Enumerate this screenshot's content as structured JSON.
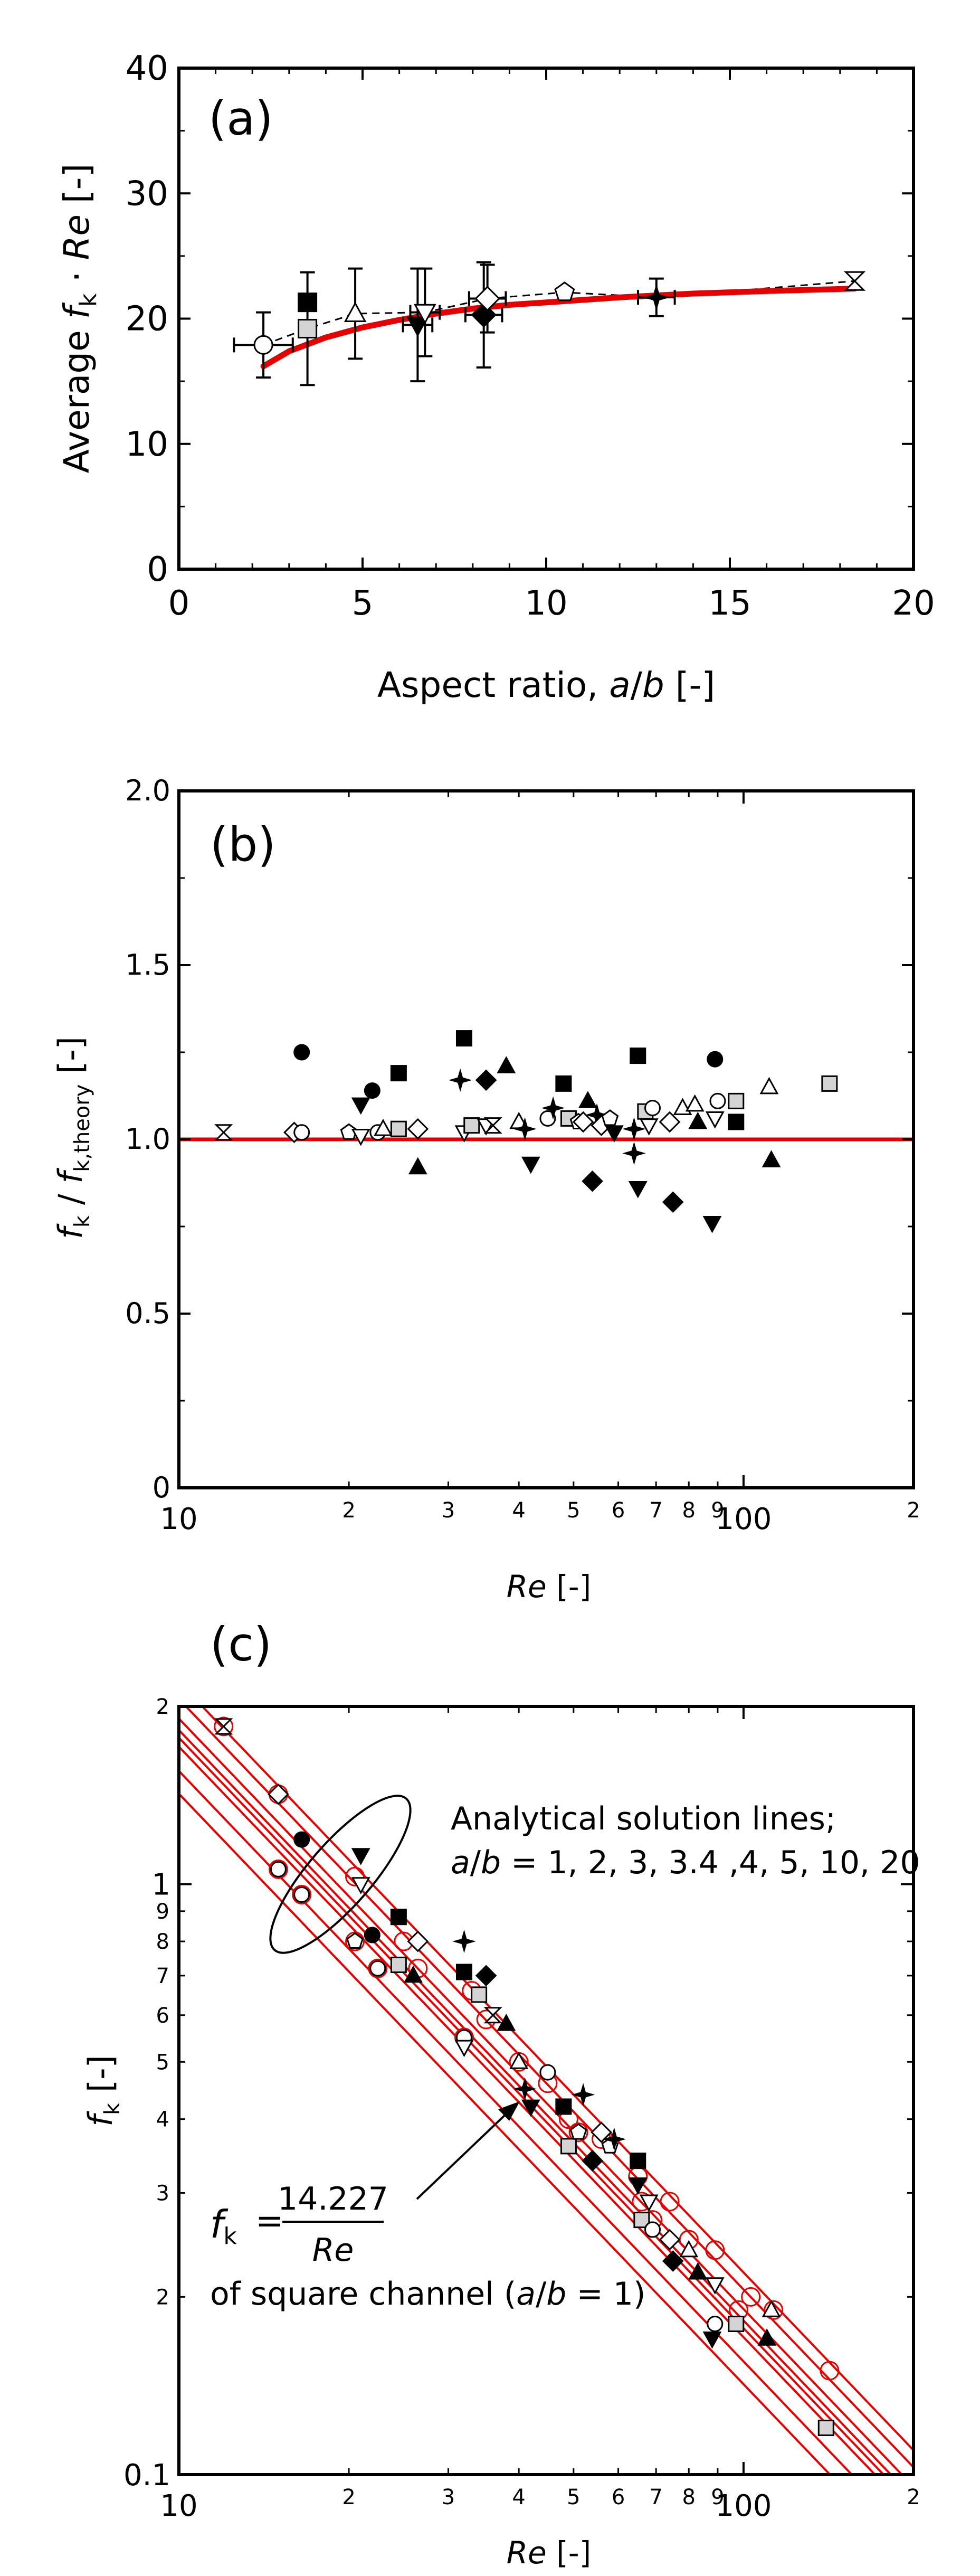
{
  "chart_data": [
    {
      "type": "scatter",
      "panel": "(a)",
      "title": "",
      "xlabel": "Aspect ratio, a/b [-]",
      "ylabel": "Average fk · Re [-]",
      "xlim": [
        0,
        20
      ],
      "ylim": [
        0,
        40
      ],
      "xticks": [
        0,
        5,
        10,
        15,
        20
      ],
      "yticks": [
        0,
        10,
        20,
        30,
        40
      ],
      "series": [
        {
          "name": "circle",
          "marker": "circle",
          "fill": "white",
          "points": [
            {
              "x": 2.3,
              "y": 17.9,
              "xerr": 0.8,
              "yerr": 2.6
            }
          ]
        },
        {
          "name": "filled-square",
          "marker": "square",
          "fill": "black",
          "points": [
            {
              "x": 3.5,
              "y": 21.3
            }
          ]
        },
        {
          "name": "grey-square",
          "marker": "square",
          "fill": "grey",
          "points": [
            {
              "x": 3.5,
              "y": 19.2,
              "yerr": 4.5
            }
          ]
        },
        {
          "name": "triangle-up",
          "marker": "triangle-up",
          "fill": "white",
          "points": [
            {
              "x": 4.8,
              "y": 20.4,
              "yerr": 3.6
            }
          ]
        },
        {
          "name": "filled-triangle-down",
          "marker": "triangle-down",
          "fill": "black",
          "points": [
            {
              "x": 6.5,
              "y": 19.5,
              "xerr": 0.4,
              "yerr": 4.5
            }
          ]
        },
        {
          "name": "triangle-down",
          "marker": "triangle-down",
          "fill": "white",
          "points": [
            {
              "x": 6.7,
              "y": 20.5,
              "xerr": 0.4,
              "yerr": 3.5
            }
          ]
        },
        {
          "name": "filled-diamond",
          "marker": "diamond",
          "fill": "black",
          "points": [
            {
              "x": 8.3,
              "y": 20.3,
              "xerr": 0.5,
              "yerr": 4.2
            }
          ]
        },
        {
          "name": "diamond",
          "marker": "diamond",
          "fill": "white",
          "points": [
            {
              "x": 8.4,
              "y": 21.6,
              "xerr": 0.5,
              "yerr": 2.7
            }
          ]
        },
        {
          "name": "pentagon",
          "marker": "pentagon",
          "fill": "white",
          "points": [
            {
              "x": 10.5,
              "y": 22.1
            }
          ]
        },
        {
          "name": "star",
          "marker": "star",
          "fill": "black",
          "points": [
            {
              "x": 13.0,
              "y": 21.7,
              "xerr": 0.5,
              "yerr": 1.5
            }
          ]
        },
        {
          "name": "hourglass",
          "marker": "hourglass",
          "fill": "white",
          "points": [
            {
              "x": 18.4,
              "y": 23.0
            }
          ]
        }
      ],
      "theory_curve": [
        [
          2.3,
          16.2
        ],
        [
          3,
          17.4
        ],
        [
          4,
          18.5
        ],
        [
          5,
          19.3
        ],
        [
          6,
          19.9
        ],
        [
          7,
          20.4
        ],
        [
          8,
          20.8
        ],
        [
          9,
          21.1
        ],
        [
          10,
          21.3
        ],
        [
          12,
          21.7
        ],
        [
          14,
          22.0
        ],
        [
          16,
          22.2
        ],
        [
          18.4,
          22.4
        ]
      ],
      "dashed_trend": [
        [
          2.3,
          17.9
        ],
        [
          3.5,
          19.2
        ],
        [
          4.8,
          20.4
        ],
        [
          6.7,
          20.5
        ],
        [
          8.4,
          21.6
        ],
        [
          10.5,
          22.1
        ],
        [
          13.0,
          21.7
        ],
        [
          18.4,
          23.0
        ]
      ]
    },
    {
      "type": "scatter",
      "panel": "(b)",
      "title": "",
      "xlabel": "Re [-]",
      "ylabel": "fk / fk,theory [-]",
      "xscale": "log",
      "xlim": [
        10,
        200
      ],
      "ylim": [
        0,
        2.0
      ],
      "yticks": [
        "0",
        "0.5",
        "1.0",
        "1.5",
        "2.0"
      ],
      "x_major_ticks": [
        "10",
        "100"
      ],
      "x_minor_labels": [
        "2",
        "3",
        "4",
        "5",
        "6",
        "7",
        "8",
        "9",
        "2"
      ],
      "reference_line": 1.0,
      "points": [
        {
          "x": 12,
          "y": 1.02,
          "m": "hourglass",
          "f": "white"
        },
        {
          "x": 16,
          "y": 1.02,
          "m": "diamond",
          "f": "white"
        },
        {
          "x": 16.5,
          "y": 1.02,
          "m": "circle",
          "f": "white"
        },
        {
          "x": 16.5,
          "y": 1.25,
          "m": "circle",
          "f": "black"
        },
        {
          "x": 20,
          "y": 1.02,
          "m": "pentagon",
          "f": "white"
        },
        {
          "x": 21,
          "y": 1.1,
          "m": "triangle-down",
          "f": "black"
        },
        {
          "x": 21,
          "y": 1.01,
          "m": "triangle-down",
          "f": "white"
        },
        {
          "x": 22,
          "y": 1.14,
          "m": "circle",
          "f": "black"
        },
        {
          "x": 22.5,
          "y": 1.02,
          "m": "circle",
          "f": "white"
        },
        {
          "x": 23,
          "y": 1.03,
          "m": "triangle-up",
          "f": "white"
        },
        {
          "x": 24.5,
          "y": 1.19,
          "m": "square",
          "f": "black"
        },
        {
          "x": 24.5,
          "y": 1.03,
          "m": "square",
          "f": "grey"
        },
        {
          "x": 26.5,
          "y": 1.03,
          "m": "diamond",
          "f": "white"
        },
        {
          "x": 26.5,
          "y": 0.92,
          "m": "triangle-up",
          "f": "black"
        },
        {
          "x": 32,
          "y": 1.29,
          "m": "square",
          "f": "black"
        },
        {
          "x": 32,
          "y": 1.02,
          "m": "triangle-down",
          "f": "white"
        },
        {
          "x": 31.5,
          "y": 1.17,
          "m": "star",
          "f": "black"
        },
        {
          "x": 33,
          "y": 1.04,
          "m": "square",
          "f": "grey"
        },
        {
          "x": 35,
          "y": 1.17,
          "m": "diamond",
          "f": "black"
        },
        {
          "x": 35,
          "y": 1.04,
          "m": "triangle-down",
          "f": "white"
        },
        {
          "x": 36,
          "y": 1.04,
          "m": "hourglass",
          "f": "white"
        },
        {
          "x": 38,
          "y": 1.21,
          "m": "triangle-up",
          "f": "black"
        },
        {
          "x": 40,
          "y": 1.05,
          "m": "triangle-up",
          "f": "white"
        },
        {
          "x": 41,
          "y": 1.03,
          "m": "star",
          "f": "black"
        },
        {
          "x": 42,
          "y": 0.93,
          "m": "triangle-down",
          "f": "black"
        },
        {
          "x": 45,
          "y": 1.06,
          "m": "circle",
          "f": "white"
        },
        {
          "x": 46,
          "y": 1.09,
          "m": "star",
          "f": "black"
        },
        {
          "x": 48,
          "y": 1.16,
          "m": "square",
          "f": "black"
        },
        {
          "x": 49,
          "y": 1.06,
          "m": "square",
          "f": "grey"
        },
        {
          "x": 51,
          "y": 1.05,
          "m": "pentagon",
          "f": "white"
        },
        {
          "x": 52,
          "y": 1.05,
          "m": "diamond",
          "f": "white"
        },
        {
          "x": 53,
          "y": 1.11,
          "m": "triangle-up",
          "f": "black"
        },
        {
          "x": 54,
          "y": 0.88,
          "m": "diamond",
          "f": "black"
        },
        {
          "x": 55,
          "y": 1.07,
          "m": "star",
          "f": "black"
        },
        {
          "x": 56,
          "y": 1.04,
          "m": "diamond",
          "f": "white"
        },
        {
          "x": 58,
          "y": 1.06,
          "m": "pentagon",
          "f": "white"
        },
        {
          "x": 59,
          "y": 1.02,
          "m": "triangle-down",
          "f": "black"
        },
        {
          "x": 65,
          "y": 1.24,
          "m": "square",
          "f": "black"
        },
        {
          "x": 64,
          "y": 1.03,
          "m": "star",
          "f": "black"
        },
        {
          "x": 64,
          "y": 0.96,
          "m": "star",
          "f": "black"
        },
        {
          "x": 65,
          "y": 0.86,
          "m": "triangle-down",
          "f": "black"
        },
        {
          "x": 67,
          "y": 1.08,
          "m": "square",
          "f": "grey"
        },
        {
          "x": 68,
          "y": 1.04,
          "m": "triangle-down",
          "f": "white"
        },
        {
          "x": 69,
          "y": 1.09,
          "m": "circle",
          "f": "white"
        },
        {
          "x": 74,
          "y": 1.05,
          "m": "diamond",
          "f": "white"
        },
        {
          "x": 75,
          "y": 0.82,
          "m": "diamond",
          "f": "black"
        },
        {
          "x": 78,
          "y": 1.09,
          "m": "triangle-up",
          "f": "white"
        },
        {
          "x": 82,
          "y": 1.1,
          "m": "triangle-up",
          "f": "white"
        },
        {
          "x": 83,
          "y": 1.05,
          "m": "triangle-up",
          "f": "black"
        },
        {
          "x": 89,
          "y": 1.23,
          "m": "circle",
          "f": "black"
        },
        {
          "x": 90,
          "y": 1.11,
          "m": "circle",
          "f": "white"
        },
        {
          "x": 88,
          "y": 0.76,
          "m": "triangle-down",
          "f": "black"
        },
        {
          "x": 89,
          "y": 1.06,
          "m": "triangle-down",
          "f": "white"
        },
        {
          "x": 97,
          "y": 1.11,
          "m": "square",
          "f": "grey"
        },
        {
          "x": 97,
          "y": 1.05,
          "m": "square",
          "f": "black"
        },
        {
          "x": 111,
          "y": 1.15,
          "m": "triangle-up",
          "f": "white"
        },
        {
          "x": 112,
          "y": 0.94,
          "m": "triangle-up",
          "f": "black"
        },
        {
          "x": 142,
          "y": 1.16,
          "m": "square",
          "f": "grey"
        }
      ]
    },
    {
      "type": "scatter",
      "panel": "(c)",
      "title": "",
      "xlabel": "Re [-]",
      "ylabel": "fk [-]",
      "xscale": "log",
      "yscale": "log",
      "xlim": [
        10,
        200
      ],
      "ylim": [
        0.1,
        2
      ],
      "x_major_ticks": [
        "10",
        "100"
      ],
      "x_minor_labels": [
        "2",
        "3",
        "4",
        "5",
        "6",
        "7",
        "8",
        "9",
        "2"
      ],
      "y_major_ticks": [
        "0.1",
        "1"
      ],
      "y_minor_labels": [
        "2",
        "3",
        "4",
        "5",
        "6",
        "7",
        "8",
        "9",
        "2"
      ],
      "analytical_fk_re": [
        14.227,
        15.548,
        17.09,
        17.7,
        18.233,
        19.071,
        20.585,
        22.0
      ],
      "annotation_lines": [
        "Analytical solution lines;",
        "a/b = 1, 2, 3, 3.4 ,4, 5, 10, 20"
      ],
      "formula": {
        "lhs": "f",
        "sub": "k",
        "numerator": "14.227",
        "denominator": "Re",
        "caption": "of square channel (a/b = 1)"
      },
      "points": [
        {
          "x": 12,
          "y": 1.85,
          "m": "hourglass",
          "f": "white"
        },
        {
          "x": 15,
          "y": 1.42,
          "m": "diamond",
          "f": "white"
        },
        {
          "x": 15,
          "y": 1.06,
          "m": "circle",
          "f": "white"
        },
        {
          "x": 16.5,
          "y": 1.19,
          "m": "circle",
          "f": "black"
        },
        {
          "x": 16.5,
          "y": 0.96,
          "m": "circle",
          "f": "white"
        },
        {
          "x": 21,
          "y": 1.12,
          "m": "triangle-down",
          "f": "black"
        },
        {
          "x": 21,
          "y": 1.0,
          "m": "triangle-down",
          "f": "white"
        },
        {
          "x": 20.5,
          "y": 0.8,
          "m": "pentagon",
          "f": "white"
        },
        {
          "x": 22,
          "y": 0.82,
          "m": "circle",
          "f": "black"
        },
        {
          "x": 22.5,
          "y": 0.72,
          "m": "circle",
          "f": "white"
        },
        {
          "x": 24.5,
          "y": 0.88,
          "m": "square",
          "f": "black"
        },
        {
          "x": 24.5,
          "y": 0.73,
          "m": "square",
          "f": "grey"
        },
        {
          "x": 26.5,
          "y": 0.8,
          "m": "diamond",
          "f": "white"
        },
        {
          "x": 26,
          "y": 0.7,
          "m": "triangle-up",
          "f": "black"
        },
        {
          "x": 32,
          "y": 0.8,
          "m": "star",
          "f": "black"
        },
        {
          "x": 32,
          "y": 0.71,
          "m": "square",
          "f": "black"
        },
        {
          "x": 32,
          "y": 0.55,
          "m": "circle",
          "f": "white"
        },
        {
          "x": 32,
          "y": 0.53,
          "m": "triangle-down",
          "f": "white"
        },
        {
          "x": 34,
          "y": 0.65,
          "m": "square",
          "f": "grey"
        },
        {
          "x": 35,
          "y": 0.7,
          "m": "diamond",
          "f": "black"
        },
        {
          "x": 36,
          "y": 0.6,
          "m": "hourglass",
          "f": "white"
        },
        {
          "x": 38,
          "y": 0.58,
          "m": "triangle-up",
          "f": "black"
        },
        {
          "x": 40,
          "y": 0.5,
          "m": "triangle-up",
          "f": "white"
        },
        {
          "x": 41,
          "y": 0.45,
          "m": "star",
          "f": "black"
        },
        {
          "x": 42,
          "y": 0.42,
          "m": "triangle-down",
          "f": "black"
        },
        {
          "x": 45,
          "y": 0.48,
          "m": "circle",
          "f": "white"
        },
        {
          "x": 48,
          "y": 0.42,
          "m": "square",
          "f": "black"
        },
        {
          "x": 49,
          "y": 0.36,
          "m": "square",
          "f": "grey"
        },
        {
          "x": 51,
          "y": 0.38,
          "m": "pentagon",
          "f": "white"
        },
        {
          "x": 52,
          "y": 0.44,
          "m": "star",
          "f": "black"
        },
        {
          "x": 54,
          "y": 0.34,
          "m": "diamond",
          "f": "black"
        },
        {
          "x": 56,
          "y": 0.38,
          "m": "diamond",
          "f": "white"
        },
        {
          "x": 58,
          "y": 0.36,
          "m": "pentagon",
          "f": "white"
        },
        {
          "x": 59,
          "y": 0.37,
          "m": "star",
          "f": "black"
        },
        {
          "x": 65,
          "y": 0.34,
          "m": "square",
          "f": "black"
        },
        {
          "x": 65,
          "y": 0.31,
          "m": "triangle-down",
          "f": "black"
        },
        {
          "x": 66,
          "y": 0.27,
          "m": "square",
          "f": "grey"
        },
        {
          "x": 68,
          "y": 0.29,
          "m": "triangle-down",
          "f": "white"
        },
        {
          "x": 69,
          "y": 0.26,
          "m": "circle",
          "f": "white"
        },
        {
          "x": 74,
          "y": 0.25,
          "m": "diamond",
          "f": "white"
        },
        {
          "x": 75,
          "y": 0.23,
          "m": "diamond",
          "f": "black"
        },
        {
          "x": 80,
          "y": 0.24,
          "m": "triangle-up",
          "f": "white"
        },
        {
          "x": 83,
          "y": 0.22,
          "m": "triangle-up",
          "f": "black"
        },
        {
          "x": 88,
          "y": 0.17,
          "m": "triangle-down",
          "f": "black"
        },
        {
          "x": 89,
          "y": 0.21,
          "m": "triangle-down",
          "f": "white"
        },
        {
          "x": 89,
          "y": 0.18,
          "m": "circle",
          "f": "white"
        },
        {
          "x": 97,
          "y": 0.18,
          "m": "square",
          "f": "grey"
        },
        {
          "x": 110,
          "y": 0.17,
          "m": "triangle-up",
          "f": "black"
        },
        {
          "x": 112,
          "y": 0.19,
          "m": "triangle-up",
          "f": "white"
        },
        {
          "x": 140,
          "y": 0.12,
          "m": "square",
          "f": "grey"
        }
      ]
    }
  ]
}
